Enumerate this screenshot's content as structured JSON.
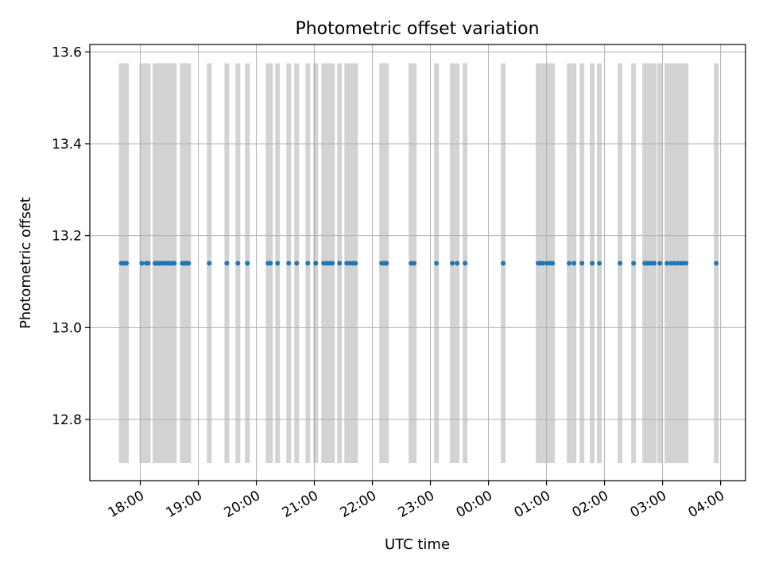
{
  "chart_data": {
    "type": "scatter",
    "title": "Photometric offset variation",
    "xlabel": "UTC time",
    "ylabel": "Photometric offset",
    "x_axis": {
      "unit": "hours since 17:00 UTC (wraps past midnight)",
      "range": [
        17.13,
        28.43
      ],
      "ticks": [
        {
          "value": 18,
          "label": "18:00"
        },
        {
          "value": 19,
          "label": "19:00"
        },
        {
          "value": 20,
          "label": "20:00"
        },
        {
          "value": 21,
          "label": "21:00"
        },
        {
          "value": 22,
          "label": "22:00"
        },
        {
          "value": 23,
          "label": "23:00"
        },
        {
          "value": 24,
          "label": "00:00"
        },
        {
          "value": 25,
          "label": "01:00"
        },
        {
          "value": 26,
          "label": "02:00"
        },
        {
          "value": 27,
          "label": "03:00"
        },
        {
          "value": 28,
          "label": "04:00"
        }
      ]
    },
    "y_axis": {
      "range": [
        12.667,
        13.616
      ],
      "ticks": [
        {
          "value": 12.8,
          "label": "12.8"
        },
        {
          "value": 13.0,
          "label": "13.0"
        },
        {
          "value": 13.2,
          "label": "13.2"
        },
        {
          "value": 13.4,
          "label": "13.4"
        },
        {
          "value": 13.6,
          "label": "13.6"
        }
      ]
    },
    "grid": true,
    "legend": "none",
    "colors": {
      "points": "#1f77b4",
      "bands": "#d3d3d3",
      "grid": "#b0b0b0"
    },
    "bands": {
      "y_range": [
        12.705,
        13.575
      ],
      "x": [
        17.672,
        17.708,
        17.735,
        17.762,
        18.027,
        18.103,
        18.137,
        18.252,
        18.287,
        18.314,
        18.341,
        18.369,
        18.396,
        18.423,
        18.451,
        18.478,
        18.505,
        18.533,
        18.56,
        18.587,
        18.724,
        18.751,
        18.778,
        18.806,
        18.833,
        19.189,
        19.491,
        19.682,
        19.846,
        20.202,
        20.243,
        20.366,
        20.558,
        20.695,
        20.887,
        21.023,
        21.16,
        21.215,
        21.256,
        21.311,
        21.434,
        21.558,
        21.612,
        21.667,
        21.708,
        22.159,
        22.2,
        22.242,
        22.666,
        22.72,
        23.104,
        23.377,
        23.46,
        23.597,
        24.254,
        24.857,
        24.897,
        24.939,
        25.008,
        25.062,
        25.104,
        25.392,
        25.474,
        25.611,
        25.788,
        25.911,
        26.268,
        26.501,
        26.693,
        26.734,
        26.775,
        26.816,
        26.858,
        26.953,
        27.076,
        27.145,
        27.2,
        27.254,
        27.309,
        27.35,
        27.405,
        27.926
      ]
    },
    "x": [
      17.672,
      17.708,
      17.735,
      17.762,
      18.027,
      18.103,
      18.137,
      18.252,
      18.287,
      18.314,
      18.341,
      18.369,
      18.396,
      18.423,
      18.451,
      18.478,
      18.505,
      18.533,
      18.56,
      18.587,
      18.724,
      18.751,
      18.778,
      18.806,
      18.833,
      19.189,
      19.491,
      19.682,
      19.846,
      20.202,
      20.243,
      20.366,
      20.558,
      20.695,
      20.887,
      21.023,
      21.16,
      21.215,
      21.256,
      21.311,
      21.434,
      21.558,
      21.612,
      21.667,
      21.708,
      22.159,
      22.2,
      22.242,
      22.666,
      22.72,
      23.104,
      23.377,
      23.46,
      23.597,
      24.254,
      24.857,
      24.897,
      24.939,
      25.008,
      25.062,
      25.104,
      25.392,
      25.474,
      25.611,
      25.788,
      25.911,
      26.268,
      26.501,
      26.693,
      26.734,
      26.775,
      26.816,
      26.858,
      26.953,
      27.076,
      27.145,
      27.2,
      27.254,
      27.309,
      27.35,
      27.405,
      27.926
    ],
    "y_value": 13.14
  }
}
